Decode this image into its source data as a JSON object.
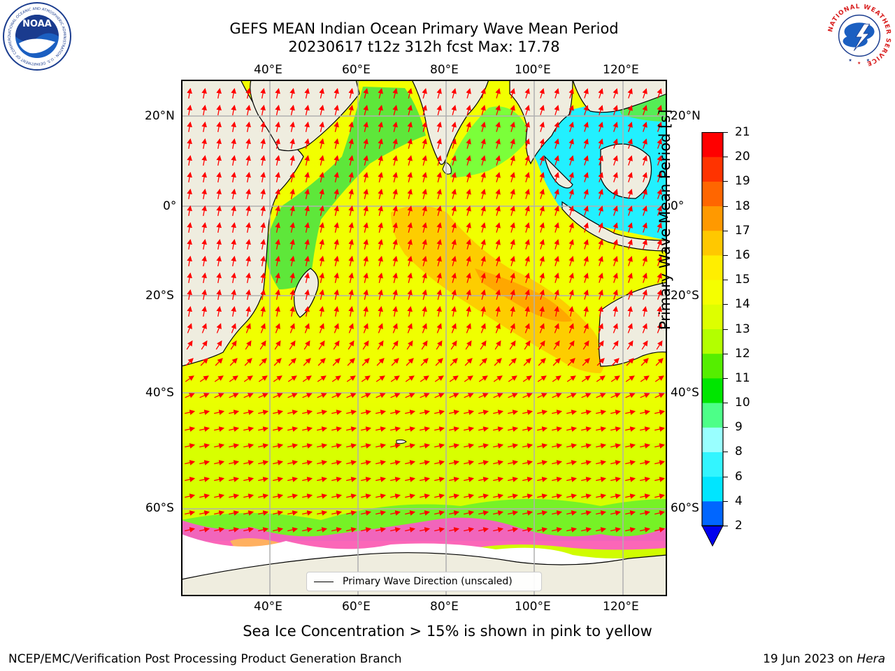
{
  "header": {
    "title_line1": "GEFS MEAN Indian Ocean Primary Wave Mean Period",
    "title_line2": "20230617 t12z 312h fcst   Max: 17.78"
  },
  "logos": {
    "noaa_text": "NOAA",
    "noaa_ring": "NATIONAL OCEANIC AND ATMOSPHERIC ADMINISTRATION · U.S. DEPARTMENT OF COMMERCE",
    "nws_ring": "NATIONAL WEATHER SERVICE"
  },
  "map": {
    "lon_ticks": [
      "40°E",
      "60°E",
      "80°E",
      "100°E",
      "120°E"
    ],
    "lat_ticks": [
      "20°N",
      "0°",
      "20°S",
      "40°S",
      "60°S"
    ],
    "grid": true,
    "legend_label": "Primary Wave Direction (unscaled)",
    "colors": {
      "land": "#efeddf",
      "ice": "#ffffff",
      "arrow": "#ff0000",
      "grid": "#b0b0b0"
    }
  },
  "colorbar": {
    "label": "Primary Wave Mean Period [s]",
    "ticks": [
      "2",
      "4",
      "6",
      "8",
      "9",
      "10",
      "11",
      "12",
      "13",
      "14",
      "15",
      "16",
      "17",
      "18",
      "19",
      "20",
      "21"
    ],
    "colors": [
      "#0066ff",
      "#00e5ff",
      "#33f5ff",
      "#99ffff",
      "#4dff88",
      "#00e600",
      "#55ee00",
      "#b3ff00",
      "#ddff00",
      "#f5ff00",
      "#ffee00",
      "#ffc800",
      "#ff9900",
      "#ff6600",
      "#ff3300",
      "#ff0000"
    ],
    "extend_color": "#0000ee"
  },
  "notes": {
    "sea_ice": "Sea Ice Concentration > 15% is shown in pink to yellow",
    "credit": "NCEP/EMC/Verification Post Processing Product Generation Branch",
    "date_text": "19 Jun 2023 on ",
    "machine": "Hera"
  }
}
